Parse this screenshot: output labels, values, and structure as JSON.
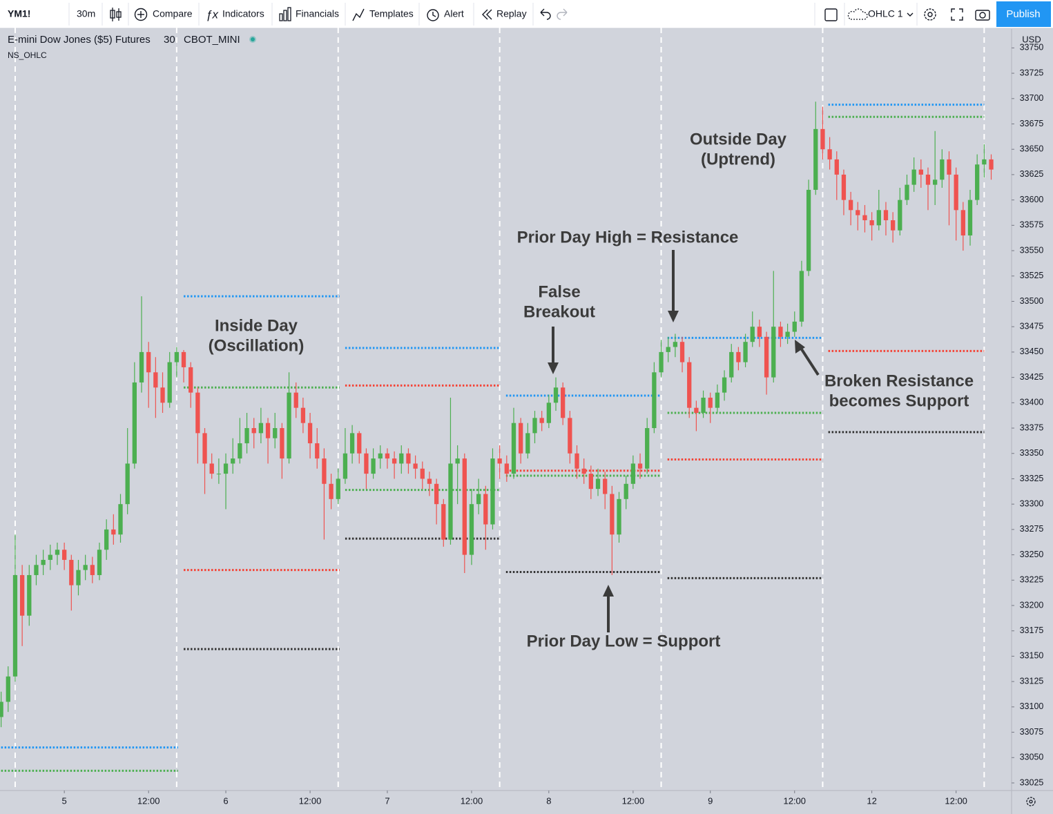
{
  "toolbar": {
    "symbol": "YM1!",
    "interval": "30m",
    "compare": "Compare",
    "indicators": "Indicators",
    "financials": "Financials",
    "templates": "Templates",
    "alert": "Alert",
    "replay": "Replay",
    "layout": "OHLC 1",
    "publish": "Publish"
  },
  "legend": {
    "name": "E-mini Dow Jones ($5) Futures",
    "interval": "30",
    "exchange": "CBOT_MINI",
    "indicator": "NS_OHLC"
  },
  "chart_data": {
    "type": "candlestick",
    "currency": "USD",
    "up_color": "#4caf50",
    "down_color": "#ef5350",
    "xlim": [
      -2.16,
      141.9
    ],
    "ylim": [
      33017.5,
      33770
    ],
    "yticks": [
      33025,
      33050,
      33075,
      33100,
      33125,
      33150,
      33175,
      33200,
      33225,
      33250,
      33275,
      33300,
      33325,
      33350,
      33375,
      33400,
      33425,
      33450,
      33475,
      33500,
      33525,
      33550,
      33575,
      33600,
      33625,
      33650,
      33675,
      33700,
      33725,
      33750
    ],
    "xticks": [
      {
        "value": 7,
        "label": "5"
      },
      {
        "value": 19,
        "label": "12:00"
      },
      {
        "value": 30,
        "label": "6"
      },
      {
        "value": 42,
        "label": "12:00"
      },
      {
        "value": 53,
        "label": "7"
      },
      {
        "value": 65,
        "label": "12:00"
      },
      {
        "value": 76,
        "label": "8"
      },
      {
        "value": 88,
        "label": "12:00"
      },
      {
        "value": 99,
        "label": "9"
      },
      {
        "value": 111,
        "label": "12:00"
      },
      {
        "value": 122,
        "label": "12"
      },
      {
        "value": 134,
        "label": "12:00"
      }
    ],
    "session_breaks": [
      0,
      23,
      46,
      69,
      92,
      115,
      138
    ],
    "x": [
      -2,
      -1,
      0,
      1,
      2,
      3,
      4,
      5,
      6,
      7,
      8,
      9,
      10,
      11,
      12,
      13,
      14,
      15,
      16,
      17,
      18,
      19,
      20,
      21,
      22,
      23,
      24,
      25,
      26,
      27,
      28,
      29,
      30,
      31,
      32,
      33,
      34,
      35,
      36,
      37,
      38,
      39,
      40,
      41,
      42,
      43,
      44,
      45,
      46,
      47,
      48,
      49,
      50,
      51,
      52,
      53,
      54,
      55,
      56,
      57,
      58,
      59,
      60,
      61,
      62,
      63,
      64,
      65,
      66,
      67,
      68,
      69,
      70,
      71,
      72,
      73,
      74,
      75,
      76,
      77,
      78,
      79,
      80,
      81,
      82,
      83,
      84,
      85,
      86,
      87,
      88,
      89,
      90,
      91,
      92,
      93,
      94,
      95,
      96,
      97,
      98,
      99,
      100,
      101,
      102,
      103,
      104,
      105,
      106,
      107,
      108,
      109,
      110,
      111,
      112,
      113,
      114,
      115,
      116,
      117,
      118,
      119,
      120,
      121,
      122,
      123,
      124,
      125,
      126,
      127,
      128,
      129,
      130,
      131,
      132,
      133,
      134,
      135,
      136,
      137,
      138,
      139
    ],
    "candles": [
      [
        33090,
        33115,
        33080,
        33105
      ],
      [
        33105,
        33140,
        33095,
        33130
      ],
      [
        33130,
        33270,
        33125,
        33230
      ],
      [
        33230,
        33240,
        33160,
        33190
      ],
      [
        33190,
        33240,
        33180,
        33230
      ],
      [
        33230,
        33250,
        33220,
        33240
      ],
      [
        33240,
        33255,
        33230,
        33245
      ],
      [
        33245,
        33260,
        33235,
        33250
      ],
      [
        33250,
        33262,
        33240,
        33255
      ],
      [
        33255,
        33262,
        33235,
        33245
      ],
      [
        33245,
        33250,
        33195,
        33220
      ],
      [
        33220,
        33245,
        33210,
        33235
      ],
      [
        33235,
        33250,
        33225,
        33240
      ],
      [
        33240,
        33248,
        33222,
        33230
      ],
      [
        33230,
        33262,
        33225,
        33255
      ],
      [
        33255,
        33285,
        33245,
        33275
      ],
      [
        33275,
        33290,
        33260,
        33270
      ],
      [
        33270,
        33310,
        33262,
        33300
      ],
      [
        33300,
        33375,
        33290,
        33340
      ],
      [
        33340,
        33440,
        33335,
        33420
      ],
      [
        33420,
        33505,
        33410,
        33450
      ],
      [
        33450,
        33460,
        33395,
        33430
      ],
      [
        33430,
        33445,
        33385,
        33415
      ],
      [
        33415,
        33430,
        33390,
        33400
      ],
      [
        33400,
        33450,
        33395,
        33440
      ],
      [
        33440,
        33455,
        33425,
        33450
      ],
      [
        33450,
        33452,
        33420,
        33435
      ],
      [
        33435,
        33440,
        33395,
        33410
      ],
      [
        33410,
        33415,
        33340,
        33370
      ],
      [
        33370,
        33375,
        33310,
        33340
      ],
      [
        33340,
        33350,
        33325,
        33330
      ],
      [
        33330,
        33345,
        33320,
        33330
      ],
      [
        33330,
        33350,
        33295,
        33340
      ],
      [
        33340,
        33365,
        33330,
        33345
      ],
      [
        33345,
        33385,
        33340,
        33360
      ],
      [
        33360,
        33390,
        33350,
        33375
      ],
      [
        33375,
        33385,
        33355,
        33370
      ],
      [
        33370,
        33395,
        33360,
        33380
      ],
      [
        33380,
        33385,
        33340,
        33365
      ],
      [
        33365,
        33390,
        33355,
        33375
      ],
      [
        33375,
        33380,
        33325,
        33345
      ],
      [
        33345,
        33430,
        33340,
        33410
      ],
      [
        33410,
        33420,
        33385,
        33395
      ],
      [
        33395,
        33405,
        33370,
        33380
      ],
      [
        33380,
        33390,
        33345,
        33360
      ],
      [
        33360,
        33375,
        33335,
        33345
      ],
      [
        33345,
        33355,
        33265,
        33320
      ],
      [
        33320,
        33330,
        33295,
        33305
      ],
      [
        33305,
        33335,
        33300,
        33325
      ],
      [
        33325,
        33375,
        33320,
        33350
      ],
      [
        33350,
        33378,
        33340,
        33370
      ],
      [
        33370,
        33372,
        33340,
        33350
      ],
      [
        33350,
        33355,
        33315,
        33330
      ],
      [
        33330,
        33355,
        33325,
        33345
      ],
      [
        33345,
        33358,
        33335,
        33350
      ],
      [
        33350,
        33355,
        33335,
        33345
      ],
      [
        33345,
        33352,
        33325,
        33340
      ],
      [
        33340,
        33358,
        33330,
        33350
      ],
      [
        33350,
        33355,
        33330,
        33340
      ],
      [
        33340,
        33348,
        33325,
        33335
      ],
      [
        33335,
        33342,
        33315,
        33325
      ],
      [
        33325,
        33332,
        33308,
        33320
      ],
      [
        33320,
        33325,
        33280,
        33300
      ],
      [
        33300,
        33305,
        33258,
        33265
      ],
      [
        33265,
        33405,
        33260,
        33340
      ],
      [
        33340,
        33358,
        33300,
        33345
      ],
      [
        33345,
        33350,
        33232,
        33250
      ],
      [
        33250,
        33315,
        33240,
        33300
      ],
      [
        33300,
        33325,
        33290,
        33310
      ],
      [
        33310,
        33318,
        33255,
        33280
      ],
      [
        33280,
        33355,
        33275,
        33345
      ],
      [
        33345,
        33358,
        33325,
        33340
      ],
      [
        33340,
        33348,
        33322,
        33330
      ],
      [
        33330,
        33395,
        33325,
        33380
      ],
      [
        33380,
        33385,
        33340,
        33350
      ],
      [
        33350,
        33380,
        33345,
        33370
      ],
      [
        33370,
        33392,
        33360,
        33385
      ],
      [
        33385,
        33392,
        33372,
        33380
      ],
      [
        33380,
        33408,
        33375,
        33400
      ],
      [
        33400,
        33425,
        33392,
        33415
      ],
      [
        33415,
        33420,
        33378,
        33385
      ],
      [
        33385,
        33392,
        33340,
        33350
      ],
      [
        33350,
        33358,
        33325,
        33335
      ],
      [
        33335,
        33345,
        33320,
        33330
      ],
      [
        33330,
        33338,
        33305,
        33315
      ],
      [
        33315,
        33335,
        33308,
        33325
      ],
      [
        33325,
        33332,
        33295,
        33310
      ],
      [
        33310,
        33318,
        33230,
        33270
      ],
      [
        33270,
        33312,
        33262,
        33305
      ],
      [
        33305,
        33328,
        33295,
        33320
      ],
      [
        33320,
        33348,
        33315,
        33340
      ],
      [
        33340,
        33350,
        33325,
        33335
      ],
      [
        33335,
        33385,
        33330,
        33375
      ],
      [
        33375,
        33440,
        33370,
        33430
      ],
      [
        33430,
        33462,
        33425,
        33450
      ],
      [
        33450,
        33465,
        33440,
        33455
      ],
      [
        33455,
        33468,
        33445,
        33460
      ],
      [
        33460,
        33465,
        33430,
        33440
      ],
      [
        33440,
        33445,
        33385,
        33395
      ],
      [
        33395,
        33402,
        33372,
        33390
      ],
      [
        33390,
        33412,
        33385,
        33405
      ],
      [
        33405,
        33410,
        33380,
        33395
      ],
      [
        33395,
        33418,
        33390,
        33410
      ],
      [
        33410,
        33432,
        33402,
        33425
      ],
      [
        33425,
        33458,
        33420,
        33450
      ],
      [
        33450,
        33455,
        33432,
        33440
      ],
      [
        33440,
        33468,
        33435,
        33460
      ],
      [
        33460,
        33490,
        33455,
        33475
      ],
      [
        33475,
        33482,
        33455,
        33465
      ],
      [
        33465,
        33470,
        33408,
        33425
      ],
      [
        33425,
        33530,
        33420,
        33475
      ],
      [
        33475,
        33480,
        33455,
        33465
      ],
      [
        33465,
        33478,
        33458,
        33470
      ],
      [
        33470,
        33490,
        33465,
        33480
      ],
      [
        33480,
        33540,
        33475,
        33530
      ],
      [
        33530,
        33620,
        33525,
        33610
      ],
      [
        33610,
        33697,
        33605,
        33670
      ],
      [
        33670,
        33692,
        33640,
        33650
      ],
      [
        33650,
        33662,
        33630,
        33640
      ],
      [
        33640,
        33648,
        33600,
        33625
      ],
      [
        33625,
        33630,
        33585,
        33600
      ],
      [
        33600,
        33608,
        33575,
        33590
      ],
      [
        33590,
        33598,
        33570,
        33585
      ],
      [
        33585,
        33595,
        33568,
        33580
      ],
      [
        33580,
        33588,
        33560,
        33575
      ],
      [
        33575,
        33610,
        33570,
        33590
      ],
      [
        33590,
        33598,
        33565,
        33580
      ],
      [
        33580,
        33588,
        33558,
        33570
      ],
      [
        33570,
        33612,
        33565,
        33600
      ],
      [
        33600,
        33625,
        33595,
        33615
      ],
      [
        33615,
        33642,
        33608,
        33630
      ],
      [
        33630,
        33640,
        33612,
        33625
      ],
      [
        33625,
        33632,
        33590,
        33615
      ],
      [
        33615,
        33668,
        33595,
        33620
      ],
      [
        33620,
        33650,
        33612,
        33640
      ],
      [
        33640,
        33648,
        33575,
        33625
      ],
      [
        33625,
        33632,
        33560,
        33590
      ],
      [
        33590,
        33598,
        33550,
        33565
      ],
      [
        33565,
        33610,
        33555,
        33600
      ],
      [
        33600,
        33645,
        33595,
        33635
      ],
      [
        33635,
        33655,
        33622,
        33640
      ],
      [
        33640,
        33645,
        33620,
        33630
      ]
    ],
    "levels": [
      {
        "color": "#2196f3",
        "value": 33060,
        "x": [
          -2,
          23.2
        ]
      },
      {
        "color": "#4caf50",
        "value": 33037,
        "x": [
          -2,
          23.2
        ]
      },
      {
        "color": "#2196f3",
        "value": 33505,
        "x": [
          24,
          46.2
        ]
      },
      {
        "color": "#4caf50",
        "value": 33415,
        "x": [
          24,
          46.2
        ]
      },
      {
        "color": "#f44336",
        "value": 33235,
        "x": [
          24,
          46.2
        ]
      },
      {
        "color": "#333333",
        "value": 33157,
        "x": [
          24,
          46.2
        ]
      },
      {
        "color": "#2196f3",
        "value": 33454,
        "x": [
          47,
          69.1
        ]
      },
      {
        "color": "#f44336",
        "value": 33417,
        "x": [
          47,
          69.1
        ]
      },
      {
        "color": "#4caf50",
        "value": 33314,
        "x": [
          47,
          69.1
        ]
      },
      {
        "color": "#333333",
        "value": 33266,
        "x": [
          47,
          69.1
        ]
      },
      {
        "color": "#2196f3",
        "value": 33407,
        "x": [
          69.9,
          92
        ]
      },
      {
        "color": "#f44336",
        "value": 33333,
        "x": [
          69.9,
          92
        ]
      },
      {
        "color": "#4caf50",
        "value": 33328,
        "x": [
          69.9,
          92
        ]
      },
      {
        "color": "#333333",
        "value": 33233,
        "x": [
          69.9,
          92
        ]
      },
      {
        "color": "#2196f3",
        "value": 33464,
        "x": [
          92.9,
          115
        ]
      },
      {
        "color": "#4caf50",
        "value": 33390,
        "x": [
          92.9,
          115
        ]
      },
      {
        "color": "#f44336",
        "value": 33344,
        "x": [
          92.9,
          115
        ]
      },
      {
        "color": "#333333",
        "value": 33227,
        "x": [
          92.9,
          115
        ]
      },
      {
        "color": "#2196f3",
        "value": 33694,
        "x": [
          115.8,
          138
        ]
      },
      {
        "color": "#4caf50",
        "value": 33682,
        "x": [
          115.8,
          138
        ]
      },
      {
        "color": "#f44336",
        "value": 33451,
        "x": [
          115.8,
          138
        ]
      },
      {
        "color": "#333333",
        "value": 33371,
        "x": [
          115.8,
          138
        ]
      }
    ],
    "annotations": [
      {
        "lines": [
          "Inside Day",
          "(Oscillation)"
        ]
      },
      {
        "lines": [
          "False",
          "Breakout"
        ]
      },
      {
        "lines": [
          "Prior Day High = Resistance"
        ]
      },
      {
        "lines": [
          "Outside Day",
          "(Uptrend)"
        ]
      },
      {
        "lines": [
          "Broken Resistance",
          "becomes Support"
        ]
      },
      {
        "lines": [
          "Prior Day Low = Support"
        ]
      }
    ]
  }
}
